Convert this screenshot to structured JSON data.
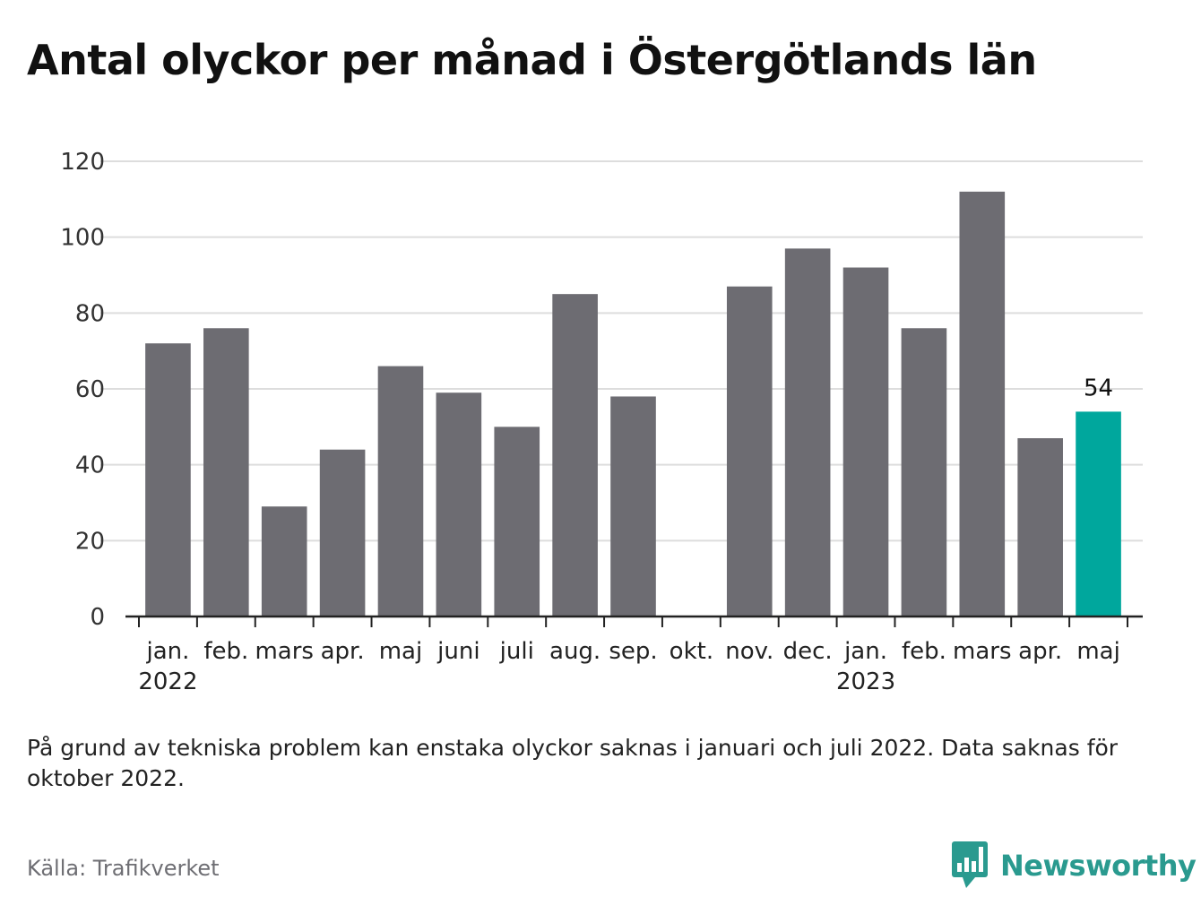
{
  "chart_data": {
    "type": "bar",
    "title": "Antal olyckor per månad i Östergötlands län",
    "categories": [
      "jan.",
      "feb.",
      "mars",
      "apr.",
      "maj",
      "juni",
      "juli",
      "aug.",
      "sep.",
      "okt.",
      "nov.",
      "dec.",
      "jan.",
      "feb.",
      "mars",
      "apr.",
      "maj"
    ],
    "year_labels": [
      {
        "category_index": 0,
        "label": "2022"
      },
      {
        "category_index": 12,
        "label": "2023"
      }
    ],
    "values": [
      72,
      76,
      29,
      44,
      66,
      59,
      50,
      85,
      58,
      null,
      87,
      97,
      92,
      76,
      112,
      47,
      54
    ],
    "highlight_index": 16,
    "data_labels": [
      {
        "category_index": 16,
        "label": "54"
      }
    ],
    "ylim": [
      0,
      120
    ],
    "yticks": [
      0,
      20,
      40,
      60,
      80,
      100,
      120
    ],
    "xlabel": "",
    "ylabel": "",
    "grid": true,
    "legend": "none",
    "colors": {
      "bar": "#6d6c72",
      "highlight": "#00a79d",
      "grid": "#dddddd",
      "axis": "#222222"
    }
  },
  "note": "På grund av tekniska problem kan enstaka olyckor saknas i januari och juli 2022. Data saknas för oktober 2022.",
  "source": "Källa: Trafikverket",
  "brand": {
    "name": "Newsworthy",
    "icon": "bar-chart-speech-bubble-icon",
    "color": "#2a9a8f"
  }
}
